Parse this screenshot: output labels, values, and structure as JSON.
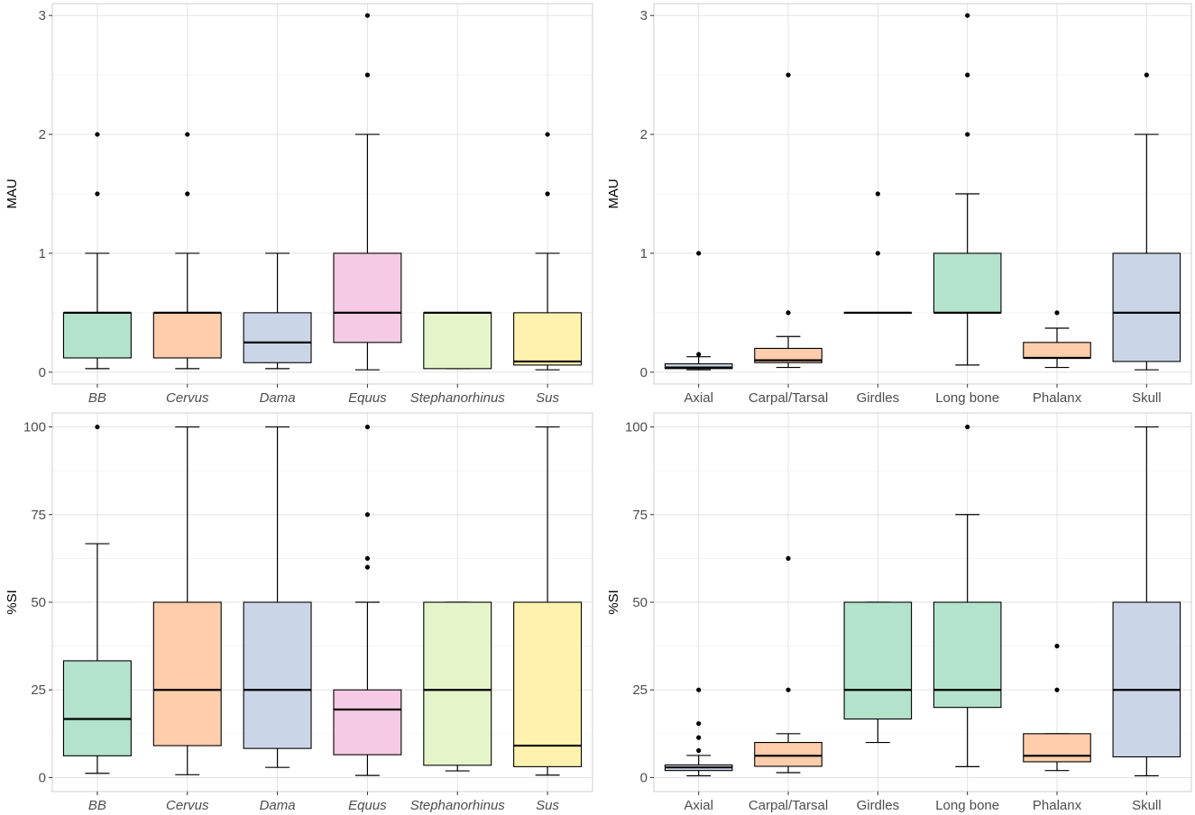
{
  "colors": {
    "green": "#b3e2cd",
    "orange": "#fdcdac",
    "blue": "#cbd5e8",
    "pink": "#f4cae4",
    "lime": "#e6f5c9",
    "yellow": "#fff2ae"
  },
  "chart_data": [
    {
      "type": "box",
      "ylabel": "MAU",
      "xlabel": "",
      "ylim": [
        -0.1,
        3.1
      ],
      "yticks": [
        0,
        1,
        2,
        3
      ],
      "italic_categories": true,
      "categories": [
        "BB",
        "Cervus",
        "Dama",
        "Equus",
        "Stephanorhinus",
        "Sus"
      ],
      "boxes": [
        {
          "category": "BB",
          "fill": "green",
          "whisker_low": 0.03,
          "q1": 0.12,
          "median": 0.5,
          "q3": 0.5,
          "whisker_high": 1.0,
          "outliers": [
            1.5,
            2.0
          ]
        },
        {
          "category": "Cervus",
          "fill": "orange",
          "whisker_low": 0.03,
          "q1": 0.12,
          "median": 0.5,
          "q3": 0.5,
          "whisker_high": 1.0,
          "outliers": [
            1.5,
            2.0
          ]
        },
        {
          "category": "Dama",
          "fill": "blue",
          "whisker_low": 0.03,
          "q1": 0.08,
          "median": 0.25,
          "q3": 0.5,
          "whisker_high": 1.0,
          "outliers": []
        },
        {
          "category": "Equus",
          "fill": "pink",
          "whisker_low": 0.02,
          "q1": 0.25,
          "median": 0.5,
          "q3": 1.0,
          "whisker_high": 2.0,
          "outliers": [
            2.5,
            3.0
          ]
        },
        {
          "category": "Stephanorhinus",
          "fill": "lime",
          "whisker_low": 0.03,
          "q1": 0.03,
          "median": 0.5,
          "q3": 0.5,
          "whisker_high": 0.5,
          "outliers": []
        },
        {
          "category": "Sus",
          "fill": "yellow",
          "whisker_low": 0.02,
          "q1": 0.06,
          "median": 0.09,
          "q3": 0.5,
          "whisker_high": 1.0,
          "outliers": [
            1.5,
            2.0
          ]
        }
      ]
    },
    {
      "type": "box",
      "ylabel": "MAU",
      "xlabel": "",
      "ylim": [
        -0.1,
        3.1
      ],
      "yticks": [
        0,
        1,
        2,
        3
      ],
      "italic_categories": false,
      "categories": [
        "Axial",
        "Carpal/Tarsal",
        "Girdles",
        "Long bone",
        "Phalanx",
        "Skull"
      ],
      "boxes": [
        {
          "category": "Axial",
          "fill": "blue",
          "whisker_low": 0.02,
          "q1": 0.03,
          "median": 0.04,
          "q3": 0.07,
          "whisker_high": 0.13,
          "outliers": [
            0.15,
            1.0
          ]
        },
        {
          "category": "Carpal/Tarsal",
          "fill": "orange",
          "whisker_low": 0.04,
          "q1": 0.08,
          "median": 0.1,
          "q3": 0.2,
          "whisker_high": 0.3,
          "outliers": [
            0.5,
            2.5
          ]
        },
        {
          "category": "Girdles",
          "fill": "green",
          "whisker_low": 0.5,
          "q1": 0.5,
          "median": 0.5,
          "q3": 0.5,
          "whisker_high": 0.5,
          "outliers": [
            1.0,
            1.5
          ]
        },
        {
          "category": "Long bone",
          "fill": "green",
          "whisker_low": 0.06,
          "q1": 0.5,
          "median": 0.5,
          "q3": 1.0,
          "whisker_high": 1.5,
          "outliers": [
            2.0,
            2.5,
            3.0
          ]
        },
        {
          "category": "Phalanx",
          "fill": "orange",
          "whisker_low": 0.04,
          "q1": 0.12,
          "median": 0.12,
          "q3": 0.25,
          "whisker_high": 0.37,
          "outliers": [
            0.5
          ]
        },
        {
          "category": "Skull",
          "fill": "blue",
          "whisker_low": 0.02,
          "q1": 0.09,
          "median": 0.5,
          "q3": 1.0,
          "whisker_high": 2.0,
          "outliers": [
            2.5
          ]
        }
      ]
    },
    {
      "type": "box",
      "ylabel": "%SI",
      "xlabel": "",
      "ylim": [
        -4,
        104
      ],
      "yticks": [
        0,
        25,
        50,
        75,
        100
      ],
      "italic_categories": true,
      "categories": [
        "BB",
        "Cervus",
        "Dama",
        "Equus",
        "Stephanorhinus",
        "Sus"
      ],
      "boxes": [
        {
          "category": "BB",
          "fill": "green",
          "whisker_low": 1.2,
          "q1": 6.2,
          "median": 16.7,
          "q3": 33.3,
          "whisker_high": 66.7,
          "outliers": [
            100
          ]
        },
        {
          "category": "Cervus",
          "fill": "orange",
          "whisker_low": 0.8,
          "q1": 9.1,
          "median": 25.0,
          "q3": 50.0,
          "whisker_high": 100,
          "outliers": []
        },
        {
          "category": "Dama",
          "fill": "blue",
          "whisker_low": 2.9,
          "q1": 8.3,
          "median": 25.0,
          "q3": 50.0,
          "whisker_high": 100,
          "outliers": []
        },
        {
          "category": "Equus",
          "fill": "pink",
          "whisker_low": 0.6,
          "q1": 6.5,
          "median": 19.4,
          "q3": 25.0,
          "whisker_high": 50.0,
          "outliers": [
            60.0,
            62.5,
            75.0,
            100
          ]
        },
        {
          "category": "Stephanorhinus",
          "fill": "lime",
          "whisker_low": 1.9,
          "q1": 3.5,
          "median": 25.0,
          "q3": 50.0,
          "whisker_high": 50.0,
          "outliers": []
        },
        {
          "category": "Sus",
          "fill": "yellow",
          "whisker_low": 0.7,
          "q1": 3.1,
          "median": 9.1,
          "q3": 50.0,
          "whisker_high": 100,
          "outliers": []
        }
      ]
    },
    {
      "type": "box",
      "ylabel": "%SI",
      "xlabel": "",
      "ylim": [
        -4,
        104
      ],
      "yticks": [
        0,
        25,
        50,
        75,
        100
      ],
      "italic_categories": false,
      "categories": [
        "Axial",
        "Carpal/Tarsal",
        "Girdles",
        "Long bone",
        "Phalanx",
        "Skull"
      ],
      "boxes": [
        {
          "category": "Axial",
          "fill": "blue",
          "whisker_low": 0.5,
          "q1": 2.0,
          "median": 2.9,
          "q3": 3.6,
          "whisker_high": 6.3,
          "outliers": [
            7.7,
            11.4,
            15.4,
            25.0
          ]
        },
        {
          "category": "Carpal/Tarsal",
          "fill": "orange",
          "whisker_low": 1.4,
          "q1": 3.2,
          "median": 6.2,
          "q3": 10.0,
          "whisker_high": 12.5,
          "outliers": [
            25.0,
            62.5
          ]
        },
        {
          "category": "Girdles",
          "fill": "green",
          "whisker_low": 10.0,
          "q1": 16.7,
          "median": 25.0,
          "q3": 50.0,
          "whisker_high": 50.0,
          "outliers": []
        },
        {
          "category": "Long bone",
          "fill": "green",
          "whisker_low": 3.1,
          "q1": 20.0,
          "median": 25.0,
          "q3": 50.0,
          "whisker_high": 75.0,
          "outliers": [
            100
          ]
        },
        {
          "category": "Phalanx",
          "fill": "orange",
          "whisker_low": 2.0,
          "q1": 4.5,
          "median": 6.2,
          "q3": 12.5,
          "whisker_high": 12.5,
          "outliers": [
            25.0,
            37.5
          ]
        },
        {
          "category": "Skull",
          "fill": "blue",
          "whisker_low": 0.5,
          "q1": 5.9,
          "median": 25.0,
          "q3": 50.0,
          "whisker_high": 100,
          "outliers": []
        }
      ]
    }
  ]
}
